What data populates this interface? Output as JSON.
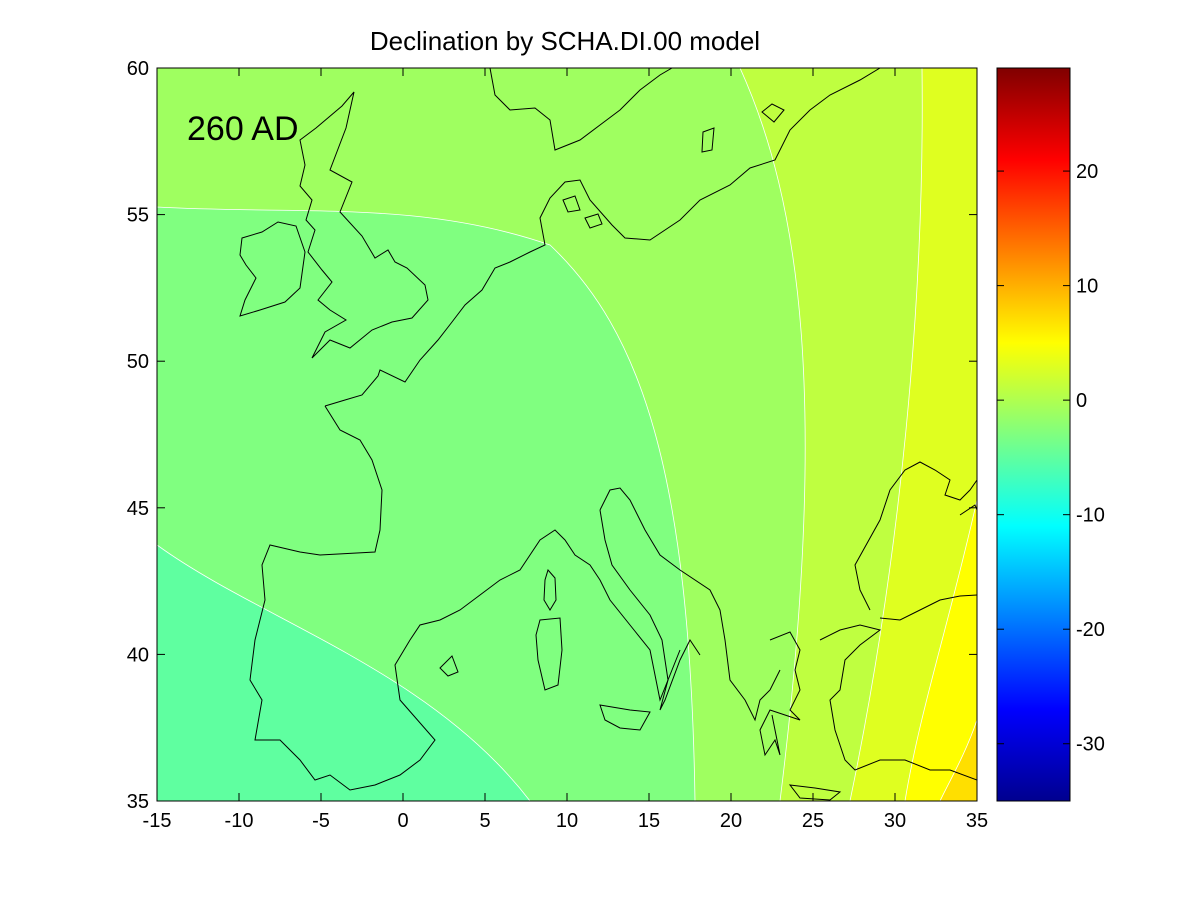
{
  "title": "Declination by SCHA.DI.00 model",
  "annotation": "260 AD",
  "map": {
    "x_range": [
      -15,
      35
    ],
    "y_range": [
      35,
      60
    ],
    "x_ticks": [
      "-15",
      "-10",
      "-5",
      "0",
      "5",
      "10",
      "15",
      "20",
      "25",
      "30",
      "35"
    ],
    "y_ticks": [
      "35",
      "40",
      "45",
      "50",
      "55",
      "60"
    ],
    "region": "Europe and Mediterranean",
    "field": "Declination",
    "contour_zones_west_to_east_approx_deg": [
      -7,
      -4,
      -1,
      1,
      3,
      5,
      7
    ]
  },
  "colorbar": {
    "colormap": "jet",
    "range": [
      -35,
      29
    ],
    "ticks": [
      "20",
      "10",
      "0",
      "-10",
      "-20",
      "-30"
    ],
    "tick_values": [
      20,
      10,
      0,
      -10,
      -20,
      -30
    ]
  }
}
